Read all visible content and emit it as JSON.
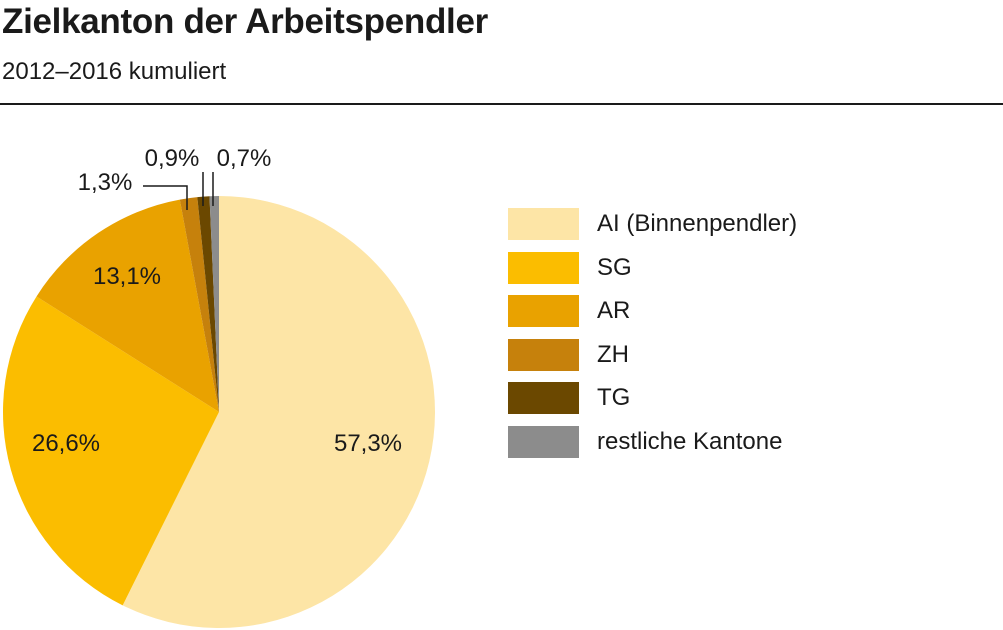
{
  "chart_data": {
    "type": "pie",
    "title": "Zielkanton der Arbeitspendler",
    "subtitle": "2012–2016 kumuliert",
    "slices": [
      {
        "label": "AI (Binnenpendler)",
        "value": 57.3,
        "display": "57,3%",
        "color": "#fde5a6"
      },
      {
        "label": "SG",
        "value": 26.6,
        "display": "26,6%",
        "color": "#fbbd00"
      },
      {
        "label": "AR",
        "value": 13.1,
        "display": "13,1%",
        "color": "#e9a200"
      },
      {
        "label": "ZH",
        "value": 1.3,
        "display": "1,3%",
        "color": "#c6810c"
      },
      {
        "label": "TG",
        "value": 0.9,
        "display": "0,9%",
        "color": "#6b4800"
      },
      {
        "label": "restliche Kantone",
        "value": 0.7,
        "display": "0,7%",
        "color": "#8c8c8c"
      }
    ],
    "legend_position": "right"
  }
}
